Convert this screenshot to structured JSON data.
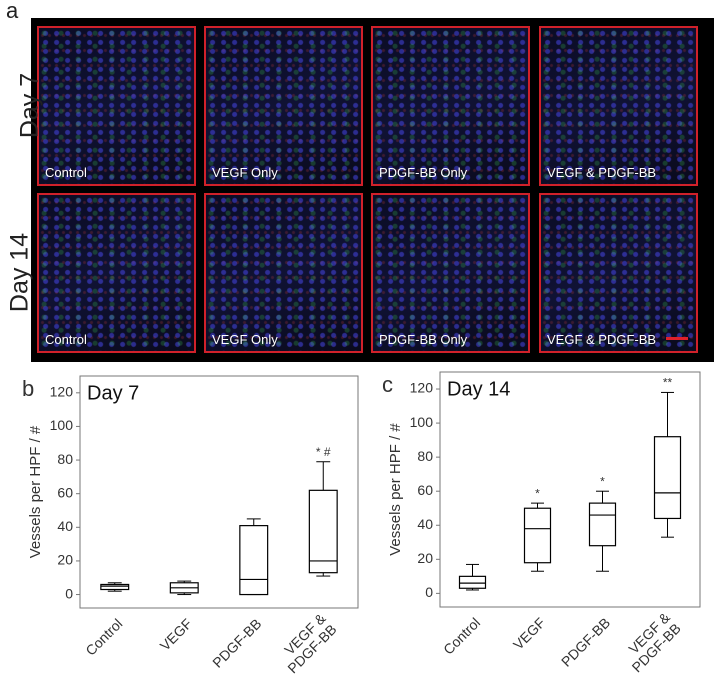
{
  "panel_a": {
    "label": "a",
    "rows": [
      "Day 7",
      "Day 14"
    ],
    "tiles": [
      [
        "Control",
        "VEGF Only",
        "PDGF-BB Only",
        "VEGF & PDGF-BB"
      ],
      [
        "Control",
        "VEGF Only",
        "PDGF-BB Only",
        "VEGF & PDGF-BB"
      ]
    ]
  },
  "chart_data": [
    {
      "type": "box",
      "panel_label": "b",
      "title": "Day 7",
      "y_label": "Vessels per HPF / #",
      "categories": [
        "Control",
        "VEGF",
        "PDGF-BB",
        "VEGF &\nPDGF-BB"
      ],
      "boxes": [
        {
          "min": 2,
          "q1": 3,
          "median": 5,
          "q3": 6,
          "max": 7
        },
        {
          "min": 0,
          "q1": 1,
          "median": 4,
          "q3": 7,
          "max": 8
        },
        {
          "min": 0,
          "q1": 0,
          "median": 9,
          "q3": 41,
          "max": 45
        },
        {
          "min": 11,
          "q1": 13,
          "median": 20,
          "q3": 62,
          "max": 79
        }
      ],
      "annotations": [
        null,
        null,
        null,
        "* #"
      ],
      "ylim": [
        -8,
        130
      ],
      "yticks": [
        0,
        20,
        40,
        60,
        80,
        100,
        120
      ],
      "color": "#000000"
    },
    {
      "type": "box",
      "panel_label": "c",
      "title": "Day 14",
      "y_label": "Vessels per HPF / #",
      "categories": [
        "Control",
        "VEGF",
        "PDGF-BB",
        "VEGF &\nPDGF-BB"
      ],
      "boxes": [
        {
          "min": 2,
          "q1": 3,
          "median": 6,
          "q3": 10,
          "max": 17
        },
        {
          "min": 13,
          "q1": 18,
          "median": 38,
          "q3": 50,
          "max": 53
        },
        {
          "min": 13,
          "q1": 28,
          "median": 46,
          "q3": 53,
          "max": 60
        },
        {
          "min": 33,
          "q1": 44,
          "median": 59,
          "q3": 92,
          "max": 118
        }
      ],
      "annotations": [
        null,
        "*",
        "*",
        "**"
      ],
      "ylim": [
        -8,
        130
      ],
      "yticks": [
        0,
        20,
        40,
        60,
        80,
        100,
        120
      ],
      "color": "#000000"
    }
  ]
}
